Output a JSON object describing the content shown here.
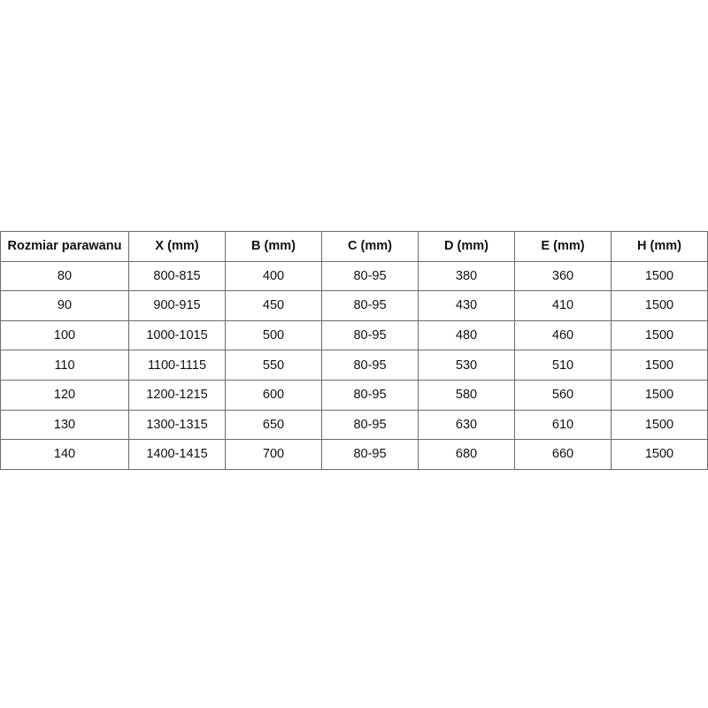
{
  "table": {
    "headers": [
      "Rozmiar parawanu",
      "X (mm)",
      "B (mm)",
      "C (mm)",
      "D (mm)",
      "E (mm)",
      "H (mm)"
    ],
    "rows": [
      [
        "80",
        "800-815",
        "400",
        "80-95",
        "380",
        "360",
        "1500"
      ],
      [
        "90",
        "900-915",
        "450",
        "80-95",
        "430",
        "410",
        "1500"
      ],
      [
        "100",
        "1000-1015",
        "500",
        "80-95",
        "480",
        "460",
        "1500"
      ],
      [
        "110",
        "1100-1115",
        "550",
        "80-95",
        "530",
        "510",
        "1500"
      ],
      [
        "120",
        "1200-1215",
        "600",
        "80-95",
        "580",
        "560",
        "1500"
      ],
      [
        "130",
        "1300-1315",
        "650",
        "80-95",
        "630",
        "610",
        "1500"
      ],
      [
        "140",
        "1400-1415",
        "700",
        "80-95",
        "680",
        "660",
        "1500"
      ]
    ]
  }
}
